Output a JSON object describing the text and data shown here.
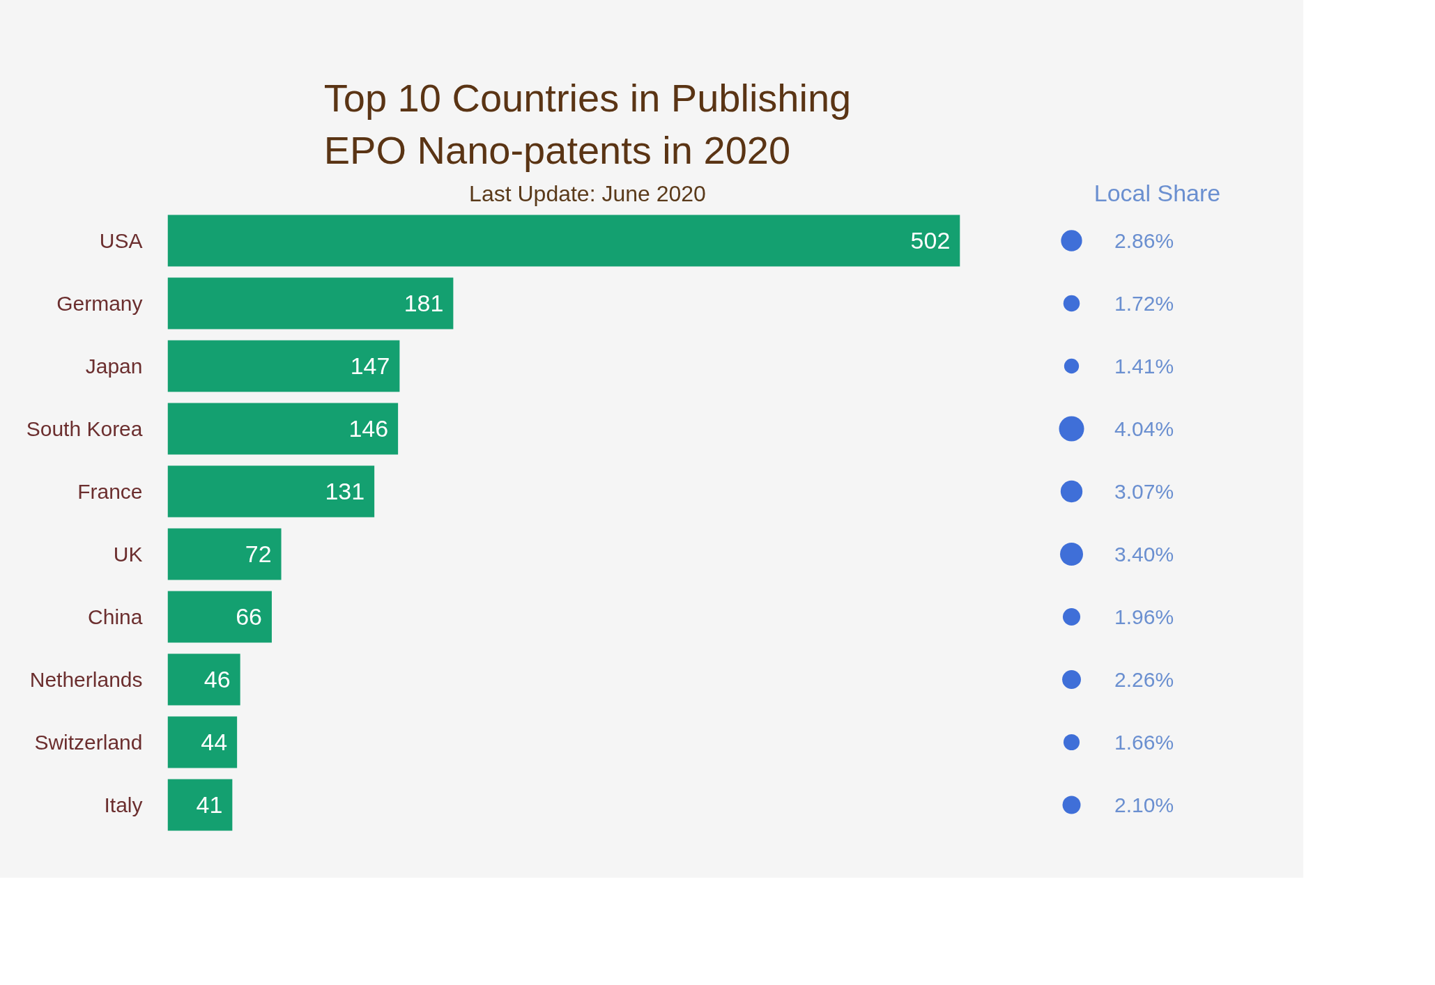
{
  "chart_data": [
    {
      "type": "bar",
      "orientation": "horizontal",
      "title": "Top 10 Countries in Publishing\nEPO Nano-patents in 2020",
      "subtitle": "Last Update: June 2020",
      "categories": [
        "USA",
        "Germany",
        "Japan",
        "South Korea",
        "France",
        "UK",
        "China",
        "Netherlands",
        "Switzerland",
        "Italy"
      ],
      "values": [
        502,
        181,
        147,
        146,
        131,
        72,
        66,
        46,
        44,
        41
      ],
      "color": "#14a070",
      "data_labels": true,
      "grid": false,
      "tick_labels": "y"
    },
    {
      "type": "other",
      "title": "Local Share",
      "values": [
        2.86,
        1.72,
        1.41,
        4.04,
        3.07,
        3.4,
        1.96,
        2.26,
        1.66,
        2.1
      ],
      "value_labels": [
        "2.86%",
        "1.72%",
        "1.41%",
        "4.04%",
        "3.07%",
        "3.40%",
        "1.96%",
        "2.26%",
        "1.66%",
        "2.10%"
      ],
      "color": "#3f6fd8"
    }
  ]
}
